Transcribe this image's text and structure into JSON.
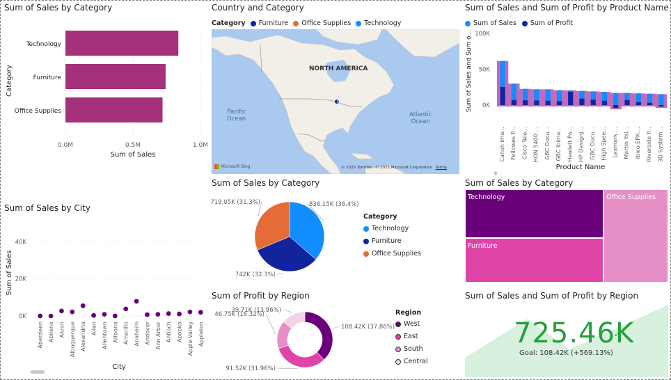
{
  "colors": {
    "magenta": "#a4317a",
    "technology": "#118dff",
    "furniture": "#12239e",
    "office_supplies": "#e66c37",
    "purple_dark": "#6b007b",
    "pink_mid": "#e044a7",
    "pink_light": "#e68fc7",
    "kpi_green": "#22a03a",
    "map_water": "#a9c9ef",
    "map_land": "#f2efe9"
  },
  "sales_by_category_bar": {
    "title": "Sum of Sales by Category",
    "chart_data": {
      "type": "bar",
      "orientation": "horizontal",
      "categories": [
        "Technology",
        "Furniture",
        "Office Supplies"
      ],
      "values": [
        836154,
        741999,
        719047
      ],
      "xlabel": "Sum of Sales",
      "ylabel": "Category",
      "xlim": [
        0,
        1000000
      ],
      "xticks": [
        "0.0M",
        "0.5M",
        "1.0M"
      ]
    }
  },
  "map": {
    "title": "Country and Category",
    "legend_title": "Category",
    "legend": [
      "Furniture",
      "Office Supplies",
      "Technology"
    ],
    "label_continent": "NORTH AMERICA",
    "label_pacific": "Pacific",
    "label_pacific2": "Ocean",
    "label_atlantic": "Atlantic",
    "label_atlantic2": "Ocean",
    "attribution": "© 2025 TomTom, © 2025 Microsoft Corporation",
    "terms": "Terms",
    "bing": "Microsoft Bing"
  },
  "sales_profit_product": {
    "title": "Sum of Sales and Sum of Profit by Product Name",
    "legend": [
      "Sum of Sales",
      "Sum of Profit"
    ],
    "ylabel": "Sum of Sales and Sum o...",
    "xlabel": "Product Name",
    "chart_data": {
      "type": "bar",
      "categories": [
        "Canon ima...",
        "Fellowes P...",
        "Cisco Tele...",
        "HON 5400 ...",
        "GBC Docu...",
        "GBC Ibima...",
        "Hewlett Pa...",
        "HP Designj...",
        "GBC Docu...",
        "High Spee...",
        "Lexmark ...",
        "Martin Yal...",
        "Ibico EPK-...",
        "Riverside P...",
        "3D System..."
      ],
      "yticks": [
        "0K",
        "50K",
        "100K"
      ],
      "series": [
        {
          "name": "Sum of Sales",
          "values": [
            61600,
            30000,
            22600,
            22000,
            22000,
            20700,
            20500,
            19800,
            19000,
            18400,
            17000,
            17000,
            16300,
            15800,
            15200
          ]
        },
        {
          "name": "Sum of Profit",
          "values": [
            25200,
            7000,
            6700,
            6500,
            6000,
            5500,
            18600,
            9000,
            7500,
            6000,
            -4000,
            6800,
            4000,
            3000,
            -2000
          ]
        }
      ]
    }
  },
  "sales_by_city": {
    "title": "Sum of Sales by City",
    "ylabel": "Sum of Sales",
    "xlabel": "City",
    "chart_data": {
      "type": "line",
      "x": [
        "Aberdeen",
        "Abilene",
        "Akron",
        "Albuquerque",
        "Alexandria",
        "Allen",
        "Allentown",
        "Altoona",
        "Amarillo",
        "Anaheim",
        "Andover",
        "Ann Arbor",
        "Antioch",
        "Apopka",
        "Apple Valley",
        "Appleton"
      ],
      "values": [
        25,
        1,
        2700,
        2200,
        5500,
        300,
        900,
        20,
        3800,
        7900,
        700,
        900,
        1300,
        1100,
        2200,
        2000
      ],
      "ylim": [
        0,
        45000
      ],
      "yticks": [
        "0K",
        "20K",
        "40K"
      ]
    }
  },
  "pie_category": {
    "title": "Sum of Sales by Category",
    "legend_title": "Category",
    "legend": [
      "Technology",
      "Furniture",
      "Office Supplies"
    ],
    "labels": [
      "836.15K (36.4%)",
      "742K (32.3%)",
      "719.05K (31.3%)"
    ],
    "chart_data": {
      "type": "pie",
      "categories": [
        "Technology",
        "Furniture",
        "Office Supplies"
      ],
      "values": [
        836150,
        742000,
        719050
      ]
    }
  },
  "donut_region": {
    "title": "Sum of Profit by Region",
    "legend_title": "Region",
    "legend": [
      "West",
      "East",
      "South",
      "Central"
    ],
    "labels": [
      "108.42K (37.86%)",
      "91.52K (31.96%)",
      "46.75K (16.32%)",
      "39.71K (13.86%)"
    ],
    "chart_data": {
      "type": "pie",
      "hole": true,
      "categories": [
        "West",
        "East",
        "South",
        "Central"
      ],
      "values": [
        108420,
        91520,
        46750,
        39710
      ]
    }
  },
  "treemap": {
    "title": "Sum of Sales by Category",
    "labels": [
      "Technology",
      "Office Supplies",
      "Furniture"
    ],
    "chart_data": {
      "type": "heatmap",
      "categories": [
        "Technology",
        "Office Supplies",
        "Furniture"
      ],
      "values": [
        836154,
        719047,
        741999
      ]
    }
  },
  "kpi": {
    "title": "Sum of Sales and Sum of Profit by Region",
    "value": "725.46K",
    "goal": "Goal: 108.42K (+569.13%)"
  }
}
